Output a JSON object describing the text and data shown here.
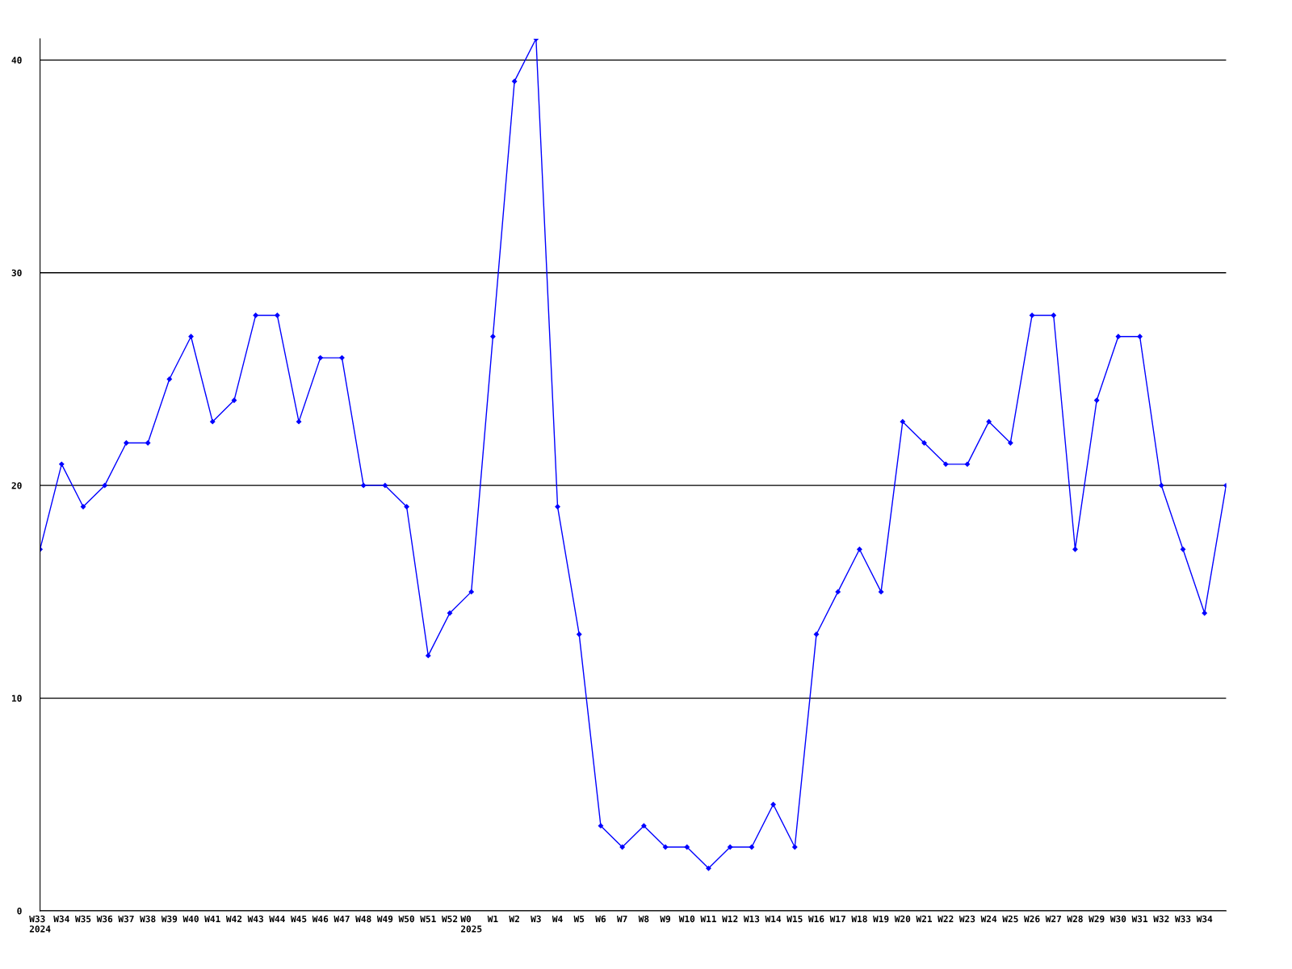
{
  "chart_data": {
    "type": "line",
    "categories": [
      "W33\n2024",
      "W34",
      "W35",
      "W36",
      "W37",
      "W38",
      "W39",
      "W40",
      "W41",
      "W42",
      "W43",
      "W44",
      "W45",
      "W46",
      "W47",
      "W48",
      "W49",
      "W50",
      "W51",
      "W52",
      "W0\n2025",
      "W1",
      "W2",
      "W3",
      "W4",
      "W5",
      "W6",
      "W7",
      "W8",
      "W9",
      "W10",
      "W11",
      "W12",
      "W13",
      "W14",
      "W15",
      "W16",
      "W17",
      "W18",
      "W19",
      "W20",
      "W21",
      "W22",
      "W23",
      "W24",
      "W25",
      "W26",
      "W27",
      "W28",
      "W29",
      "W30",
      "W31",
      "W32",
      "W33",
      "W34",
      null
    ],
    "series": [
      {
        "color": "#0000ff",
        "values": [
          17,
          21,
          19,
          20,
          22,
          22,
          25,
          27,
          23,
          24,
          28,
          28,
          23,
          26,
          26,
          20,
          20,
          19,
          12,
          14,
          15,
          27,
          39,
          41,
          19,
          13,
          4,
          3,
          4,
          3,
          3,
          2,
          3,
          3,
          5,
          3,
          13,
          15,
          17,
          15,
          23,
          22,
          21,
          21,
          23,
          22,
          28,
          28,
          17,
          24,
          27,
          27,
          20,
          17,
          14,
          20
        ]
      }
    ],
    "ylim": [
      0,
      41
    ],
    "yticks": [
      0,
      10,
      20,
      30,
      40
    ],
    "grid": "y",
    "marker": "diamond",
    "line_style": "solid",
    "legend": false
  }
}
